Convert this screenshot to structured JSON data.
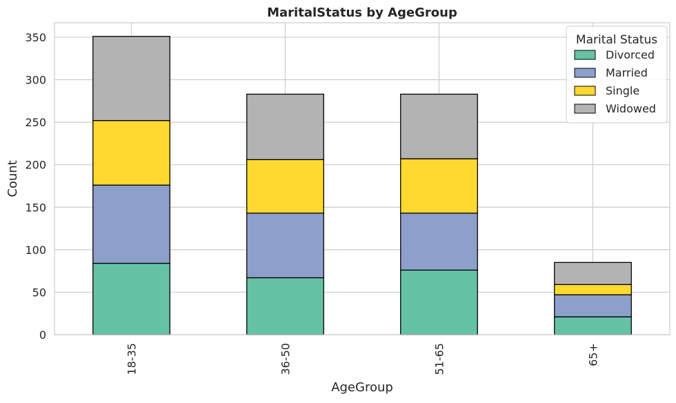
{
  "chart_data": {
    "type": "bar",
    "stacked": true,
    "title": "MaritalStatus by AgeGroup",
    "xlabel": "AgeGroup",
    "ylabel": "Count",
    "ylim": [
      0,
      367
    ],
    "yticks": [
      0,
      50,
      100,
      150,
      200,
      250,
      300,
      350
    ],
    "grid": true,
    "categories": [
      "18-35",
      "36-50",
      "51-65",
      "65+"
    ],
    "legend": {
      "title": "Marital Status",
      "placement": "top-right"
    },
    "series": [
      {
        "name": "Divorced",
        "color": "#66c2a5",
        "values": [
          84,
          67,
          76,
          21
        ]
      },
      {
        "name": "Married",
        "color": "#8da0cb",
        "values": [
          92,
          76,
          67,
          26
        ]
      },
      {
        "name": "Single",
        "color": "#ffd92f",
        "values": [
          76,
          63,
          64,
          12
        ]
      },
      {
        "name": "Widowed",
        "color": "#b3b3b3",
        "values": [
          99,
          77,
          76,
          26
        ]
      }
    ]
  }
}
